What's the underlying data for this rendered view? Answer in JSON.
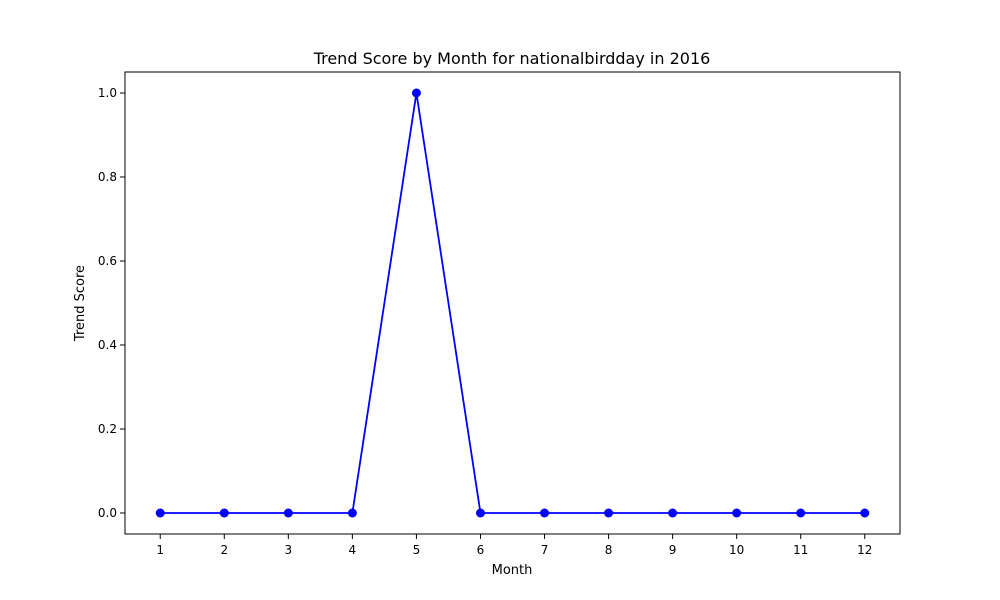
{
  "chart_data": {
    "type": "line",
    "title": "Trend Score by Month for nationalbirdday in 2016",
    "xlabel": "Month",
    "ylabel": "Trend Score",
    "x": [
      1,
      2,
      3,
      4,
      5,
      6,
      7,
      8,
      9,
      10,
      11,
      12
    ],
    "series": [
      {
        "values": [
          0,
          0,
          0,
          0,
          1.0,
          0,
          0,
          0,
          0,
          0,
          0,
          0
        ],
        "color": "#0000ff",
        "marker": "circle"
      }
    ],
    "xticks": [
      "1",
      "2",
      "3",
      "4",
      "5",
      "6",
      "7",
      "8",
      "9",
      "10",
      "11",
      "12"
    ],
    "yticks": [
      "0.0",
      "0.2",
      "0.4",
      "0.6",
      "0.8",
      "1.0"
    ],
    "ylim": [
      -0.05,
      1.05
    ],
    "xlim": [
      0.45,
      12.55
    ],
    "grid": false
  }
}
